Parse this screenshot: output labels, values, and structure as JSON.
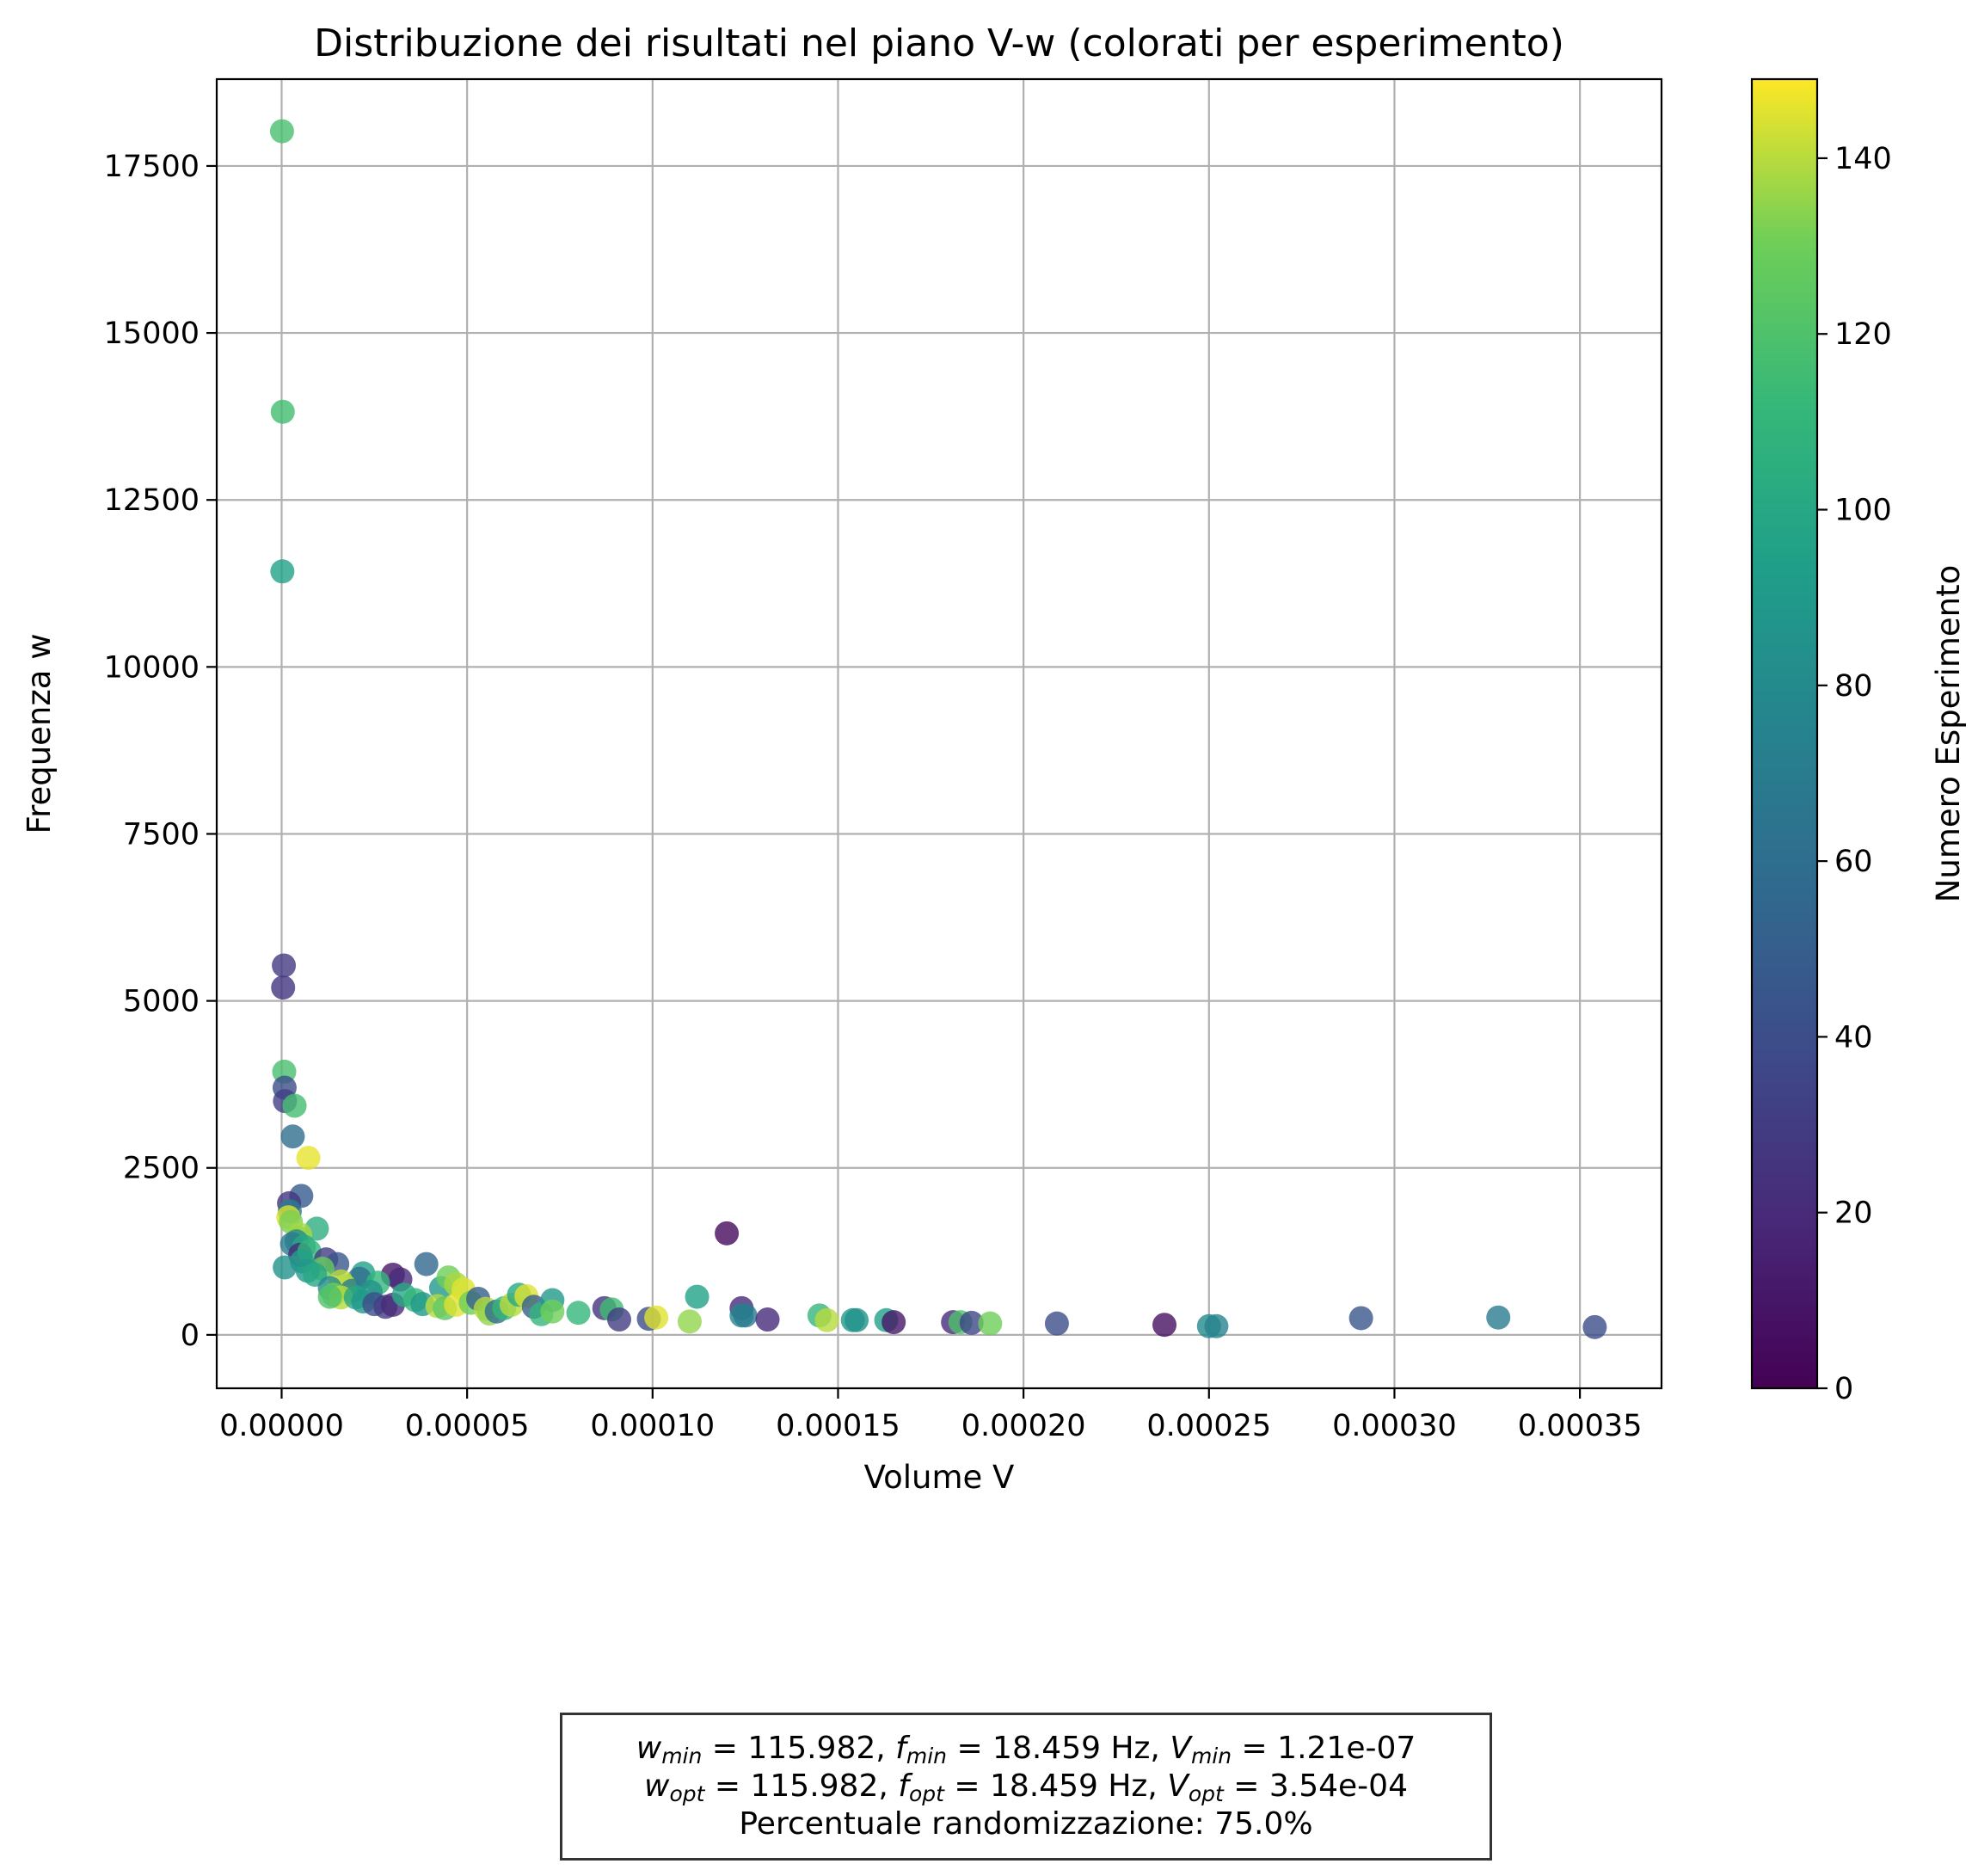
{
  "chart_data": {
    "type": "scatter",
    "title": "Distribuzione dei risultati nel piano V-w (colorati per esperimento)",
    "xlabel": "Volume V",
    "ylabel": "Frequenza w",
    "xlim": [
      -1.75e-05,
      0.000372
    ],
    "ylim": [
      -800,
      18800
    ],
    "xticks": [
      0.0,
      5e-05,
      0.0001,
      0.00015,
      0.0002,
      0.00025,
      0.0003,
      0.00035
    ],
    "xtick_labels": [
      "0.00000",
      "0.00005",
      "0.00010",
      "0.00015",
      "0.00020",
      "0.00025",
      "0.00030",
      "0.00035"
    ],
    "yticks": [
      0,
      2500,
      5000,
      7500,
      10000,
      12500,
      15000,
      17500
    ],
    "ytick_labels": [
      "0",
      "2500",
      "5000",
      "7500",
      "10000",
      "12500",
      "15000",
      "17500"
    ],
    "grid": true,
    "colormap": "viridis",
    "colorbar": {
      "label": "Numero Esperimento",
      "range": [
        0,
        149
      ],
      "ticks": [
        0,
        20,
        40,
        60,
        80,
        100,
        120,
        140
      ],
      "tick_labels": [
        "0",
        "20",
        "40",
        "60",
        "80",
        "100",
        "120",
        "140"
      ]
    },
    "points": [
      {
        "x": 1e-07,
        "y": 18020,
        "exp": 118
      },
      {
        "x": 3e-07,
        "y": 13820,
        "exp": 116
      },
      {
        "x": 2e-07,
        "y": 11430,
        "exp": 95
      },
      {
        "x": 6e-07,
        "y": 5530,
        "exp": 28
      },
      {
        "x": 4e-07,
        "y": 5200,
        "exp": 26
      },
      {
        "x": 7e-07,
        "y": 3940,
        "exp": 118
      },
      {
        "x": 8e-07,
        "y": 3700,
        "exp": 40
      },
      {
        "x": 9e-07,
        "y": 3500,
        "exp": 33
      },
      {
        "x": 3.5e-06,
        "y": 3430,
        "exp": 117
      },
      {
        "x": 3e-06,
        "y": 2970,
        "exp": 60
      },
      {
        "x": 7.2e-06,
        "y": 2650,
        "exp": 146
      },
      {
        "x": 5.3e-06,
        "y": 2080,
        "exp": 48
      },
      {
        "x": 2e-06,
        "y": 1970,
        "exp": 26
      },
      {
        "x": 2.2e-06,
        "y": 1850,
        "exp": 70
      },
      {
        "x": 1.8e-06,
        "y": 1760,
        "exp": 145
      },
      {
        "x": 2.5e-06,
        "y": 1690,
        "exp": 132
      },
      {
        "x": 9.5e-06,
        "y": 1590,
        "exp": 105
      },
      {
        "x": 5e-06,
        "y": 1500,
        "exp": 138
      },
      {
        "x": 4.5e-06,
        "y": 1450,
        "exp": 136
      },
      {
        "x": 4e-06,
        "y": 1400,
        "exp": 80
      },
      {
        "x": 2.8e-06,
        "y": 1360,
        "exp": 70
      },
      {
        "x": 6e-06,
        "y": 1320,
        "exp": 100
      },
      {
        "x": 5e-06,
        "y": 1200,
        "exp": 20
      },
      {
        "x": 7.5e-06,
        "y": 1250,
        "exp": 110
      },
      {
        "x": 5.5e-06,
        "y": 1100,
        "exp": 95
      },
      {
        "x": 1.2e-05,
        "y": 1130,
        "exp": 30
      },
      {
        "x": 1.5e-05,
        "y": 1060,
        "exp": 45
      },
      {
        "x": 8.5e-07,
        "y": 1010,
        "exp": 85
      },
      {
        "x": 1.1e-05,
        "y": 990,
        "exp": 128
      },
      {
        "x": 7e-06,
        "y": 960,
        "exp": 90
      },
      {
        "x": 9e-06,
        "y": 900,
        "exp": 100
      },
      {
        "x": 2.2e-05,
        "y": 920,
        "exp": 95
      },
      {
        "x": 2.1e-05,
        "y": 840,
        "exp": 60
      },
      {
        "x": 3e-05,
        "y": 900,
        "exp": 10
      },
      {
        "x": 3.2e-05,
        "y": 830,
        "exp": 20
      },
      {
        "x": 2.6e-05,
        "y": 780,
        "exp": 110
      },
      {
        "x": 1.6e-05,
        "y": 800,
        "exp": 140
      },
      {
        "x": 1.7e-05,
        "y": 730,
        "exp": 140
      },
      {
        "x": 1.3e-05,
        "y": 700,
        "exp": 80
      },
      {
        "x": 1.9e-05,
        "y": 660,
        "exp": 70
      },
      {
        "x": 2.4e-05,
        "y": 640,
        "exp": 85
      },
      {
        "x": 1.4e-05,
        "y": 600,
        "exp": 130
      },
      {
        "x": 1.6e-05,
        "y": 560,
        "exp": 140
      },
      {
        "x": 1.3e-05,
        "y": 570,
        "exp": 120
      },
      {
        "x": 2e-05,
        "y": 560,
        "exp": 100
      },
      {
        "x": 2.2e-05,
        "y": 500,
        "exp": 90
      },
      {
        "x": 2.5e-05,
        "y": 460,
        "exp": 40
      },
      {
        "x": 2.8e-05,
        "y": 420,
        "exp": 30
      },
      {
        "x": 3e-05,
        "y": 450,
        "exp": 20
      },
      {
        "x": 3.3e-05,
        "y": 600,
        "exp": 100
      },
      {
        "x": 3.6e-05,
        "y": 520,
        "exp": 110
      },
      {
        "x": 3.8e-05,
        "y": 460,
        "exp": 90
      },
      {
        "x": 3.9e-05,
        "y": 1060,
        "exp": 55
      },
      {
        "x": 4.3e-05,
        "y": 700,
        "exp": 90
      },
      {
        "x": 4.5e-05,
        "y": 860,
        "exp": 130
      },
      {
        "x": 4.7e-05,
        "y": 760,
        "exp": 138
      },
      {
        "x": 4.9e-05,
        "y": 680,
        "exp": 145
      },
      {
        "x": 4.2e-05,
        "y": 430,
        "exp": 140
      },
      {
        "x": 4.4e-05,
        "y": 400,
        "exp": 125
      },
      {
        "x": 4.7e-05,
        "y": 450,
        "exp": 145
      },
      {
        "x": 5.1e-05,
        "y": 480,
        "exp": 130
      },
      {
        "x": 5.3e-05,
        "y": 540,
        "exp": 50
      },
      {
        "x": 5.5e-05,
        "y": 390,
        "exp": 140
      },
      {
        "x": 5.6e-05,
        "y": 320,
        "exp": 135
      },
      {
        "x": 5.8e-05,
        "y": 350,
        "exp": 60
      },
      {
        "x": 6e-05,
        "y": 400,
        "exp": 110
      },
      {
        "x": 6.2e-05,
        "y": 450,
        "exp": 140
      },
      {
        "x": 6.4e-05,
        "y": 600,
        "exp": 100
      },
      {
        "x": 6.6e-05,
        "y": 580,
        "exp": 145
      },
      {
        "x": 6.8e-05,
        "y": 420,
        "exp": 50
      },
      {
        "x": 7e-05,
        "y": 310,
        "exp": 110
      },
      {
        "x": 7.3e-05,
        "y": 520,
        "exp": 90
      },
      {
        "x": 7.3e-05,
        "y": 350,
        "exp": 130
      },
      {
        "x": 8e-05,
        "y": 330,
        "exp": 110
      },
      {
        "x": 8.7e-05,
        "y": 400,
        "exp": 25
      },
      {
        "x": 8.9e-05,
        "y": 380,
        "exp": 115
      },
      {
        "x": 9.1e-05,
        "y": 230,
        "exp": 30
      },
      {
        "x": 9.9e-05,
        "y": 240,
        "exp": 40
      },
      {
        "x": 0.000101,
        "y": 260,
        "exp": 145
      },
      {
        "x": 0.00011,
        "y": 200,
        "exp": 135
      },
      {
        "x": 0.000112,
        "y": 570,
        "exp": 95
      },
      {
        "x": 0.00012,
        "y": 1520,
        "exp": 5
      },
      {
        "x": 0.000124,
        "y": 400,
        "exp": 20
      },
      {
        "x": 0.000124,
        "y": 290,
        "exp": 75
      },
      {
        "x": 0.000125,
        "y": 290,
        "exp": 70
      },
      {
        "x": 0.000131,
        "y": 230,
        "exp": 20
      },
      {
        "x": 0.000145,
        "y": 290,
        "exp": 110
      },
      {
        "x": 0.000147,
        "y": 220,
        "exp": 140
      },
      {
        "x": 0.000154,
        "y": 220,
        "exp": 90
      },
      {
        "x": 0.000155,
        "y": 220,
        "exp": 85
      },
      {
        "x": 0.000163,
        "y": 220,
        "exp": 95
      },
      {
        "x": 0.000165,
        "y": 190,
        "exp": 10
      },
      {
        "x": 0.000181,
        "y": 190,
        "exp": 20
      },
      {
        "x": 0.000183,
        "y": 190,
        "exp": 120
      },
      {
        "x": 0.000186,
        "y": 180,
        "exp": 35
      },
      {
        "x": 0.000191,
        "y": 170,
        "exp": 130
      },
      {
        "x": 0.000209,
        "y": 170,
        "exp": 40
      },
      {
        "x": 0.000238,
        "y": 150,
        "exp": 8
      },
      {
        "x": 0.00025,
        "y": 130,
        "exp": 80
      },
      {
        "x": 0.000252,
        "y": 130,
        "exp": 75
      },
      {
        "x": 0.000291,
        "y": 250,
        "exp": 45
      },
      {
        "x": 0.000328,
        "y": 260,
        "exp": 70
      },
      {
        "x": 0.000354,
        "y": 116,
        "exp": 40
      }
    ]
  },
  "info_box": {
    "line1": {
      "w_sym": "w",
      "w_sub": "min",
      "w_val": " = 115.982, ",
      "f_sym": "f",
      "f_sub": "min",
      "f_val": " = 18.459 Hz, ",
      "v_sym": "V",
      "v_sub": "min",
      "v_val": " = 1.21e-07"
    },
    "line2": {
      "w_sym": "w",
      "w_sub": "opt",
      "w_val": " = 115.982, ",
      "f_sym": "f",
      "f_sub": "opt",
      "f_val": " = 18.459 Hz, ",
      "v_sym": "V",
      "v_sub": "opt",
      "v_val": " = 3.54e-04"
    },
    "line3": "Percentuale randomizzazione: 75.0%"
  }
}
